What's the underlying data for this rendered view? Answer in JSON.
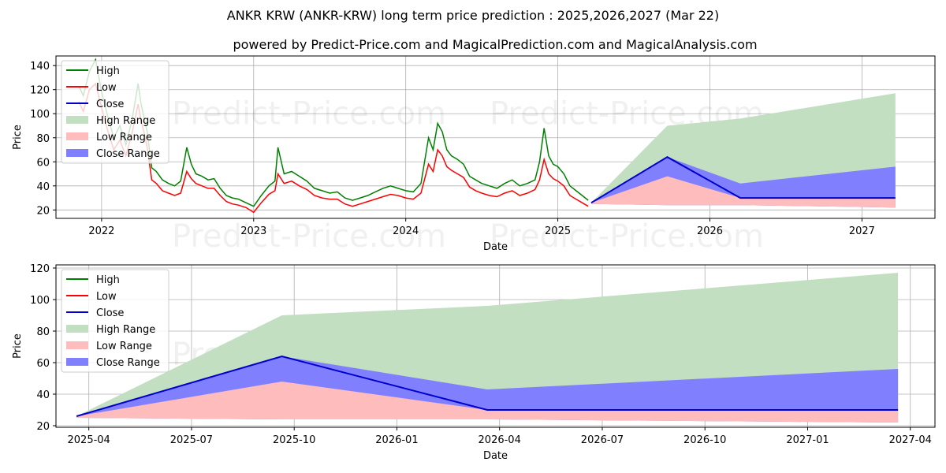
{
  "title": "ANKR KRW (ANKR-KRW) long term price prediction : 2025,2026,2027 (Mar 22)",
  "subtitle": "powered by Predict-Price.com and MagicalPrediction.com and MagicalAnalysis.com",
  "watermark": "Predict-Price.com",
  "colors": {
    "high": "#008000",
    "low": "#ff0000",
    "close": "#0000cc",
    "highRange": "#c2dfc2",
    "lowRange": "#ffbcbc",
    "closeRange": "#8080ff"
  },
  "chart_data": [
    {
      "type": "line",
      "title": "",
      "xlabel": "Date",
      "ylabel": "Price",
      "xlim": [
        2021.7,
        2027.48
      ],
      "ylim": [
        13,
        148
      ],
      "xticks": [
        2022,
        2023,
        2024,
        2025,
        2026,
        2027
      ],
      "xtick_labels": [
        "2022",
        "2023",
        "2024",
        "2025",
        "2026",
        "2027"
      ],
      "yticks": [
        20,
        40,
        60,
        80,
        100,
        120,
        140
      ],
      "grid": true,
      "legend": [
        "High",
        "Low",
        "Close",
        "High Range",
        "Low Range",
        "Close Range"
      ],
      "legend_position": "top-left",
      "history": {
        "x": [
          2021.85,
          2021.88,
          2021.92,
          2021.96,
          2022.0,
          2022.04,
          2022.08,
          2022.12,
          2022.16,
          2022.2,
          2022.24,
          2022.26,
          2022.28,
          2022.3,
          2022.33,
          2022.36,
          2022.4,
          2022.44,
          2022.48,
          2022.52,
          2022.56,
          2022.59,
          2022.62,
          2022.66,
          2022.7,
          2022.74,
          2022.78,
          2022.82,
          2022.86,
          2022.9,
          2022.95,
          2023.0,
          2023.05,
          2023.1,
          2023.14,
          2023.16,
          2023.2,
          2023.25,
          2023.3,
          2023.35,
          2023.4,
          2023.45,
          2023.5,
          2023.55,
          2023.6,
          2023.65,
          2023.7,
          2023.75,
          2023.8,
          2023.85,
          2023.9,
          2023.95,
          2024.0,
          2024.05,
          2024.1,
          2024.15,
          2024.18,
          2024.21,
          2024.24,
          2024.27,
          2024.3,
          2024.34,
          2024.38,
          2024.42,
          2024.46,
          2024.5,
          2024.55,
          2024.6,
          2024.65,
          2024.7,
          2024.75,
          2024.8,
          2024.85,
          2024.88,
          2024.91,
          2024.94,
          2024.97,
          2025.0,
          2025.04,
          2025.08,
          2025.12,
          2025.16,
          2025.2
        ],
        "high": [
          123,
          115,
          135,
          145,
          118,
          98,
          80,
          90,
          74,
          95,
          125,
          108,
          96,
          85,
          55,
          52,
          45,
          42,
          40,
          44,
          72,
          58,
          50,
          48,
          45,
          46,
          38,
          32,
          30,
          29,
          26,
          23,
          32,
          40,
          44,
          72,
          50,
          52,
          48,
          44,
          38,
          36,
          34,
          35,
          30,
          28,
          30,
          32,
          35,
          38,
          40,
          38,
          36,
          35,
          42,
          80,
          70,
          92,
          85,
          70,
          65,
          62,
          58,
          48,
          45,
          42,
          40,
          38,
          42,
          45,
          40,
          42,
          45,
          60,
          88,
          65,
          58,
          56,
          50,
          40,
          36,
          32,
          28
        ],
        "low": [
          110,
          102,
          120,
          125,
          105,
          86,
          70,
          78,
          65,
          84,
          108,
          94,
          84,
          72,
          45,
          42,
          36,
          34,
          32,
          34,
          52,
          46,
          42,
          40,
          38,
          38,
          32,
          27,
          25,
          24,
          22,
          18,
          26,
          33,
          36,
          50,
          42,
          44,
          40,
          37,
          32,
          30,
          29,
          29,
          25,
          23,
          25,
          27,
          29,
          31,
          33,
          32,
          30,
          29,
          34,
          58,
          52,
          70,
          65,
          56,
          53,
          50,
          47,
          39,
          36,
          34,
          32,
          31,
          34,
          36,
          32,
          34,
          37,
          45,
          62,
          50,
          46,
          44,
          40,
          32,
          29,
          26,
          23
        ]
      },
      "forecast": {
        "x": [
          2025.22,
          2025.72,
          2026.2,
          2027.22
        ],
        "close": [
          26,
          64,
          30,
          30
        ],
        "high_range_upper": [
          26,
          90,
          96,
          117
        ],
        "close_range_upper": [
          26,
          64,
          42,
          56
        ],
        "low_range_upper": [
          26,
          48,
          30,
          30
        ],
        "low_range_lower": [
          25,
          24,
          24,
          22
        ]
      }
    },
    {
      "type": "line",
      "title": "",
      "xlabel": "Date",
      "ylabel": "Price",
      "xlim": [
        2025.17,
        2027.31
      ],
      "ylim": [
        19,
        122
      ],
      "xticks": [
        2025.25,
        2025.5,
        2025.75,
        2026.0,
        2026.25,
        2026.5,
        2026.75,
        2027.0,
        2027.25
      ],
      "xtick_labels": [
        "2025-04",
        "2025-07",
        "2025-10",
        "2026-01",
        "2026-04",
        "2026-07",
        "2026-10",
        "2027-01",
        "2027-04"
      ],
      "yticks": [
        20,
        40,
        60,
        80,
        100,
        120
      ],
      "grid": true,
      "legend": [
        "High",
        "Low",
        "Close",
        "High Range",
        "Low Range",
        "Close Range"
      ],
      "legend_position": "top-left",
      "forecast": {
        "x": [
          2025.22,
          2025.72,
          2026.22,
          2027.22
        ],
        "close": [
          26,
          64,
          30,
          30
        ],
        "high_range_upper": [
          26,
          90,
          96,
          117
        ],
        "close_range_upper": [
          26,
          64,
          43,
          56
        ],
        "low_range_upper": [
          26,
          48,
          30,
          30
        ],
        "low_range_lower": [
          25,
          24,
          24,
          22
        ]
      }
    }
  ]
}
